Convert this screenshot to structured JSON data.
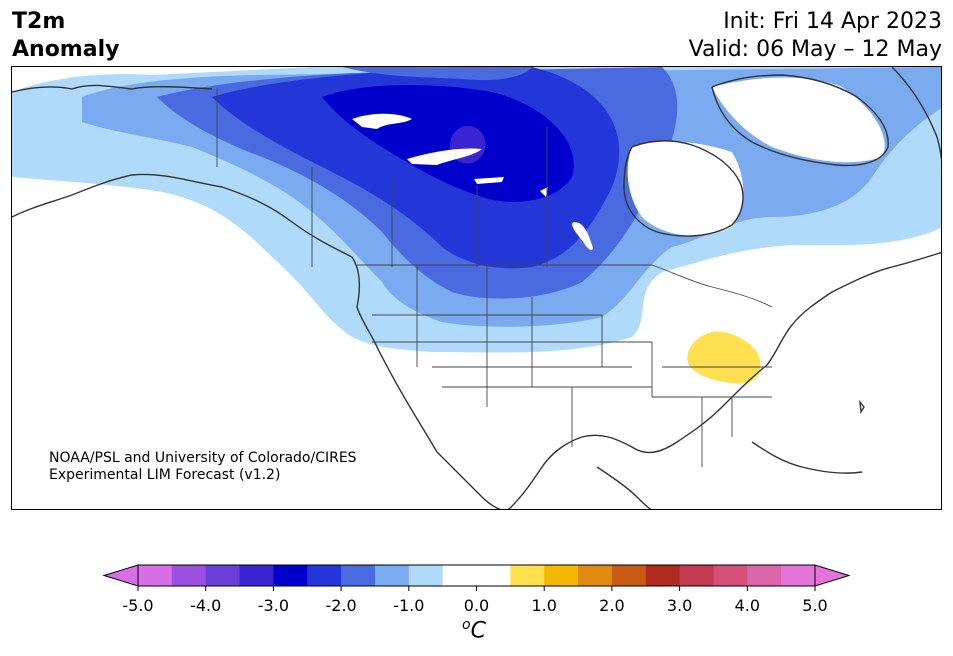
{
  "title": {
    "left_line1": "T2m",
    "left_line2": "Anomaly",
    "right_line1": "Init: Fri 14 Apr 2023",
    "right_line2": "Valid: 06 May – 12 May"
  },
  "credit": {
    "line1": "NOAA/PSL and University of Colorado/CIRES",
    "line2": "Experimental LIM Forecast (v1.2)"
  },
  "colorbar": {
    "unit": "oC",
    "tick_labels": [
      "-5.0",
      "-4.0",
      "-3.0",
      "-2.0",
      "-1.0",
      "0.0",
      "1.0",
      "2.0",
      "3.0",
      "4.0",
      "5.0"
    ],
    "ticks": [
      -5,
      -4,
      -3,
      -2,
      -1,
      0,
      1,
      2,
      3,
      4,
      5
    ],
    "levels": [
      -5.0,
      -4.5,
      -4.0,
      -3.5,
      -3.0,
      -2.5,
      -2.0,
      -1.5,
      -1.0,
      -0.5,
      0.5,
      1.0,
      1.5,
      2.0,
      2.5,
      3.0,
      3.5,
      4.0,
      4.5,
      5.0
    ],
    "colors": [
      "#d76ee6",
      "#9b50e0",
      "#6a3ed8",
      "#3a24d2",
      "#0000cd",
      "#2336d8",
      "#4a6ae0",
      "#7aaaf0",
      "#b0dafa",
      "#ffffff",
      "#ffe050",
      "#f5b800",
      "#e08a10",
      "#c85a14",
      "#b02a20",
      "#c23a50",
      "#d45078",
      "#dc64a8",
      "#e474d8"
    ],
    "extend_low_color": "#d76ee6",
    "extend_high_color": "#e474d8"
  },
  "map": {
    "land_color": "#ffffff",
    "coast_color": "#333333",
    "anomaly_regions": [
      {
        "level": "-1.0 to -0.5",
        "color": "#b0dafa"
      },
      {
        "level": "-1.5 to -1.0",
        "color": "#7aaaf0"
      },
      {
        "level": "-2.0 to -1.5",
        "color": "#4a6ae0"
      },
      {
        "level": "-2.5 to -2.0",
        "color": "#2336d8"
      },
      {
        "level": "-3.0 to -2.5",
        "color": "#0000cd"
      },
      {
        "level": "-3.5 to -3.0",
        "color": "#3a24d2"
      },
      {
        "level": "0.5 to 1.0",
        "color": "#ffe050"
      }
    ]
  }
}
